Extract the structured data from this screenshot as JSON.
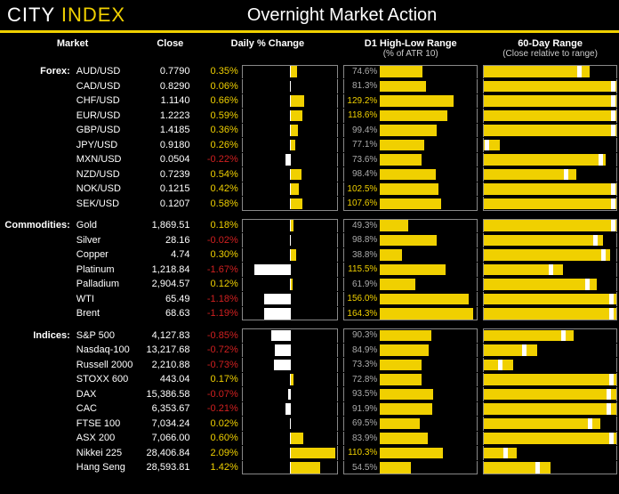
{
  "brand": {
    "part1": "CITY",
    "part2": "INDEX"
  },
  "title": "Overnight Market Action",
  "colors": {
    "accent": "#f0d000",
    "neg": "#d02020",
    "barPos": "#f0d000",
    "barNeg": "#ffffff",
    "bg": "#000000",
    "border": "#888888",
    "text": "#ffffff",
    "muted": "#aaaaaa"
  },
  "columns": {
    "market": "Market",
    "close": "Close",
    "daily": "Daily % Change",
    "d1": "D1 High-Low Range",
    "d1sub": "(% of ATR 10)",
    "r60": "60-Day Range",
    "r60sub": "(Close relative to range)"
  },
  "chart": {
    "dailyMaxAbs": 2.2,
    "d1Max": 170,
    "r60Max": 100
  },
  "groups": [
    {
      "name": "Forex:",
      "rows": [
        {
          "mkt": "AUD/USD",
          "close": "0.7790",
          "pct": 0.35,
          "d1": 74.6,
          "r60fill": 80,
          "r60mark": 72
        },
        {
          "mkt": "CAD/USD",
          "close": "0.8290",
          "pct": 0.06,
          "d1": 81.3,
          "r60fill": 100,
          "r60mark": 98
        },
        {
          "mkt": "CHF/USD",
          "close": "1.1140",
          "pct": 0.66,
          "d1": 129.2,
          "r60fill": 100,
          "r60mark": 98
        },
        {
          "mkt": "EUR/USD",
          "close": "1.2223",
          "pct": 0.59,
          "d1": 118.6,
          "r60fill": 100,
          "r60mark": 98
        },
        {
          "mkt": "GBP/USD",
          "close": "1.4185",
          "pct": 0.36,
          "d1": 99.4,
          "r60fill": 100,
          "r60mark": 98
        },
        {
          "mkt": "JPY/USD",
          "close": "0.9180",
          "pct": 0.26,
          "d1": 77.1,
          "r60fill": 12,
          "r60mark": 2
        },
        {
          "mkt": "MXN/USD",
          "close": "0.0504",
          "pct": -0.22,
          "d1": 73.6,
          "r60fill": 92,
          "r60mark": 88
        },
        {
          "mkt": "NZD/USD",
          "close": "0.7239",
          "pct": 0.54,
          "d1": 98.4,
          "r60fill": 70,
          "r60mark": 62
        },
        {
          "mkt": "NOK/USD",
          "close": "0.1215",
          "pct": 0.42,
          "d1": 102.5,
          "r60fill": 100,
          "r60mark": 98
        },
        {
          "mkt": "SEK/USD",
          "close": "0.1207",
          "pct": 0.58,
          "d1": 107.6,
          "r60fill": 100,
          "r60mark": 98
        }
      ]
    },
    {
      "name": "Commodities:",
      "rows": [
        {
          "mkt": "Gold",
          "close": "1,869.51",
          "pct": 0.18,
          "d1": 49.3,
          "r60fill": 100,
          "r60mark": 98
        },
        {
          "mkt": "Silver",
          "close": "28.16",
          "pct": -0.02,
          "d1": 98.8,
          "r60fill": 90,
          "r60mark": 84
        },
        {
          "mkt": "Copper",
          "close": "4.74",
          "pct": 0.3,
          "d1": 38.8,
          "r60fill": 95,
          "r60mark": 90
        },
        {
          "mkt": "Platinum",
          "close": "1,218.84",
          "pct": -1.67,
          "d1": 115.5,
          "r60fill": 60,
          "r60mark": 50
        },
        {
          "mkt": "Palladium",
          "close": "2,904.57",
          "pct": 0.12,
          "d1": 61.9,
          "r60fill": 85,
          "r60mark": 78
        },
        {
          "mkt": "WTI",
          "close": "65.49",
          "pct": -1.18,
          "d1": 156.0,
          "r60fill": 100,
          "r60mark": 96
        },
        {
          "mkt": "Brent",
          "close": "68.63",
          "pct": -1.19,
          "d1": 164.3,
          "r60fill": 100,
          "r60mark": 96
        }
      ]
    },
    {
      "name": "Indices:",
      "rows": [
        {
          "mkt": "S&P 500",
          "close": "4,127.83",
          "pct": -0.85,
          "d1": 90.3,
          "r60fill": 68,
          "r60mark": 60
        },
        {
          "mkt": "Nasdaq-100",
          "close": "13,217.68",
          "pct": -0.72,
          "d1": 84.9,
          "r60fill": 40,
          "r60mark": 30
        },
        {
          "mkt": "Russell 2000",
          "close": "2,210.88",
          "pct": -0.73,
          "d1": 73.3,
          "r60fill": 22,
          "r60mark": 12
        },
        {
          "mkt": "STOXX 600",
          "close": "443.04",
          "pct": 0.17,
          "d1": 72.8,
          "r60fill": 100,
          "r60mark": 96
        },
        {
          "mkt": "DAX",
          "close": "15,386.58",
          "pct": -0.07,
          "d1": 93.5,
          "r60fill": 100,
          "r60mark": 94
        },
        {
          "mkt": "CAC",
          "close": "6,353.67",
          "pct": -0.21,
          "d1": 91.9,
          "r60fill": 100,
          "r60mark": 94
        },
        {
          "mkt": "FTSE 100",
          "close": "7,034.24",
          "pct": 0.02,
          "d1": 69.5,
          "r60fill": 88,
          "r60mark": 80
        },
        {
          "mkt": "ASX 200",
          "close": "7,066.00",
          "pct": 0.6,
          "d1": 83.9,
          "r60fill": 100,
          "r60mark": 96
        },
        {
          "mkt": "Nikkei 225",
          "close": "28,406.84",
          "pct": 2.09,
          "d1": 110.3,
          "r60fill": 25,
          "r60mark": 16
        },
        {
          "mkt": "Hang Seng",
          "close": "28,593.81",
          "pct": 1.42,
          "d1": 54.5,
          "r60fill": 50,
          "r60mark": 40
        }
      ]
    }
  ]
}
